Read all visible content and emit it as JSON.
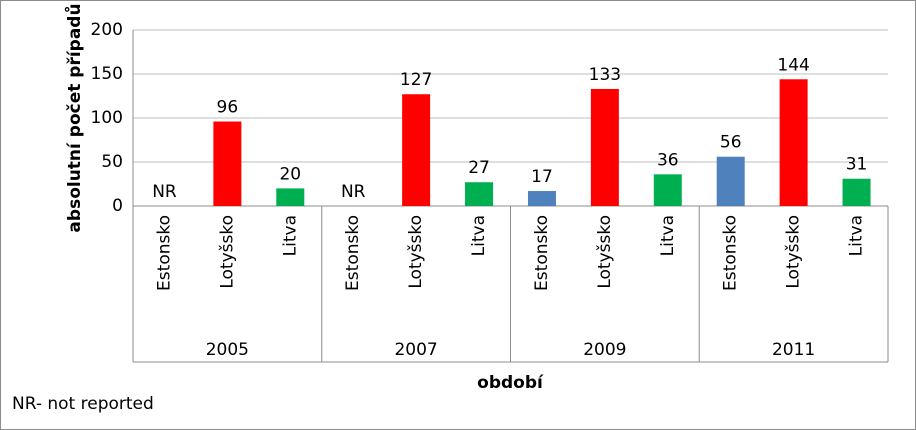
{
  "chart_data": {
    "type": "bar",
    "y_label": "absolutní počet případů",
    "x_label": "období",
    "annotation": "NR- not reported",
    "categories": [
      "2005",
      "2007",
      "2009",
      "2011"
    ],
    "series": [
      {
        "name": "Estonsko",
        "color": "#4f81bd",
        "values": [
          null,
          null,
          17,
          56
        ],
        "value_labels": [
          "NR",
          "NR",
          "17",
          "56"
        ]
      },
      {
        "name": "Lotyšsko",
        "color": "#ff0000",
        "values": [
          96,
          127,
          133,
          144
        ],
        "value_labels": [
          "96",
          "127",
          "133",
          "144"
        ]
      },
      {
        "name": "Litva",
        "color": "#00b050",
        "values": [
          20,
          27,
          36,
          31
        ],
        "value_labels": [
          "20",
          "27",
          "36",
          "31"
        ]
      }
    ],
    "ylim": [
      0,
      200
    ],
    "yticks": [
      0,
      50,
      100,
      150,
      200
    ],
    "grid": true
  }
}
